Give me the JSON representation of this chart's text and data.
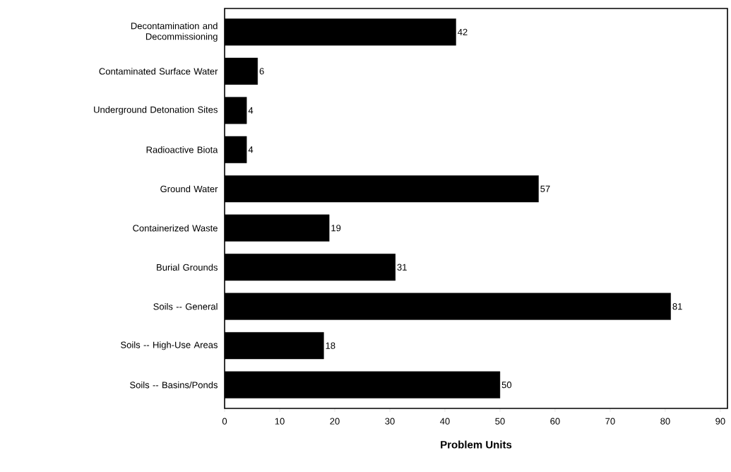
{
  "chart_data": {
    "type": "bar",
    "orientation": "horizontal",
    "xlabel": "Problem Units",
    "categories": [
      "Decontamination and Decommissioning",
      "Contaminated Surface Water",
      "Underground Detonation Sites",
      "Radioactive Biota",
      "Ground Water",
      "Containerized Waste",
      "Burial Grounds",
      "Soils -- General",
      "Soils -- High-Use Areas",
      "Soils -- Basins/Ponds"
    ],
    "values": [
      42,
      6,
      4,
      4,
      57,
      19,
      31,
      81,
      18,
      50
    ],
    "color": "#000000",
    "xlim": [
      0,
      91.3
    ],
    "xticks": [
      0,
      10,
      20,
      30,
      40,
      50,
      60,
      70,
      80,
      90
    ],
    "data_labels": true,
    "grid": false
  }
}
